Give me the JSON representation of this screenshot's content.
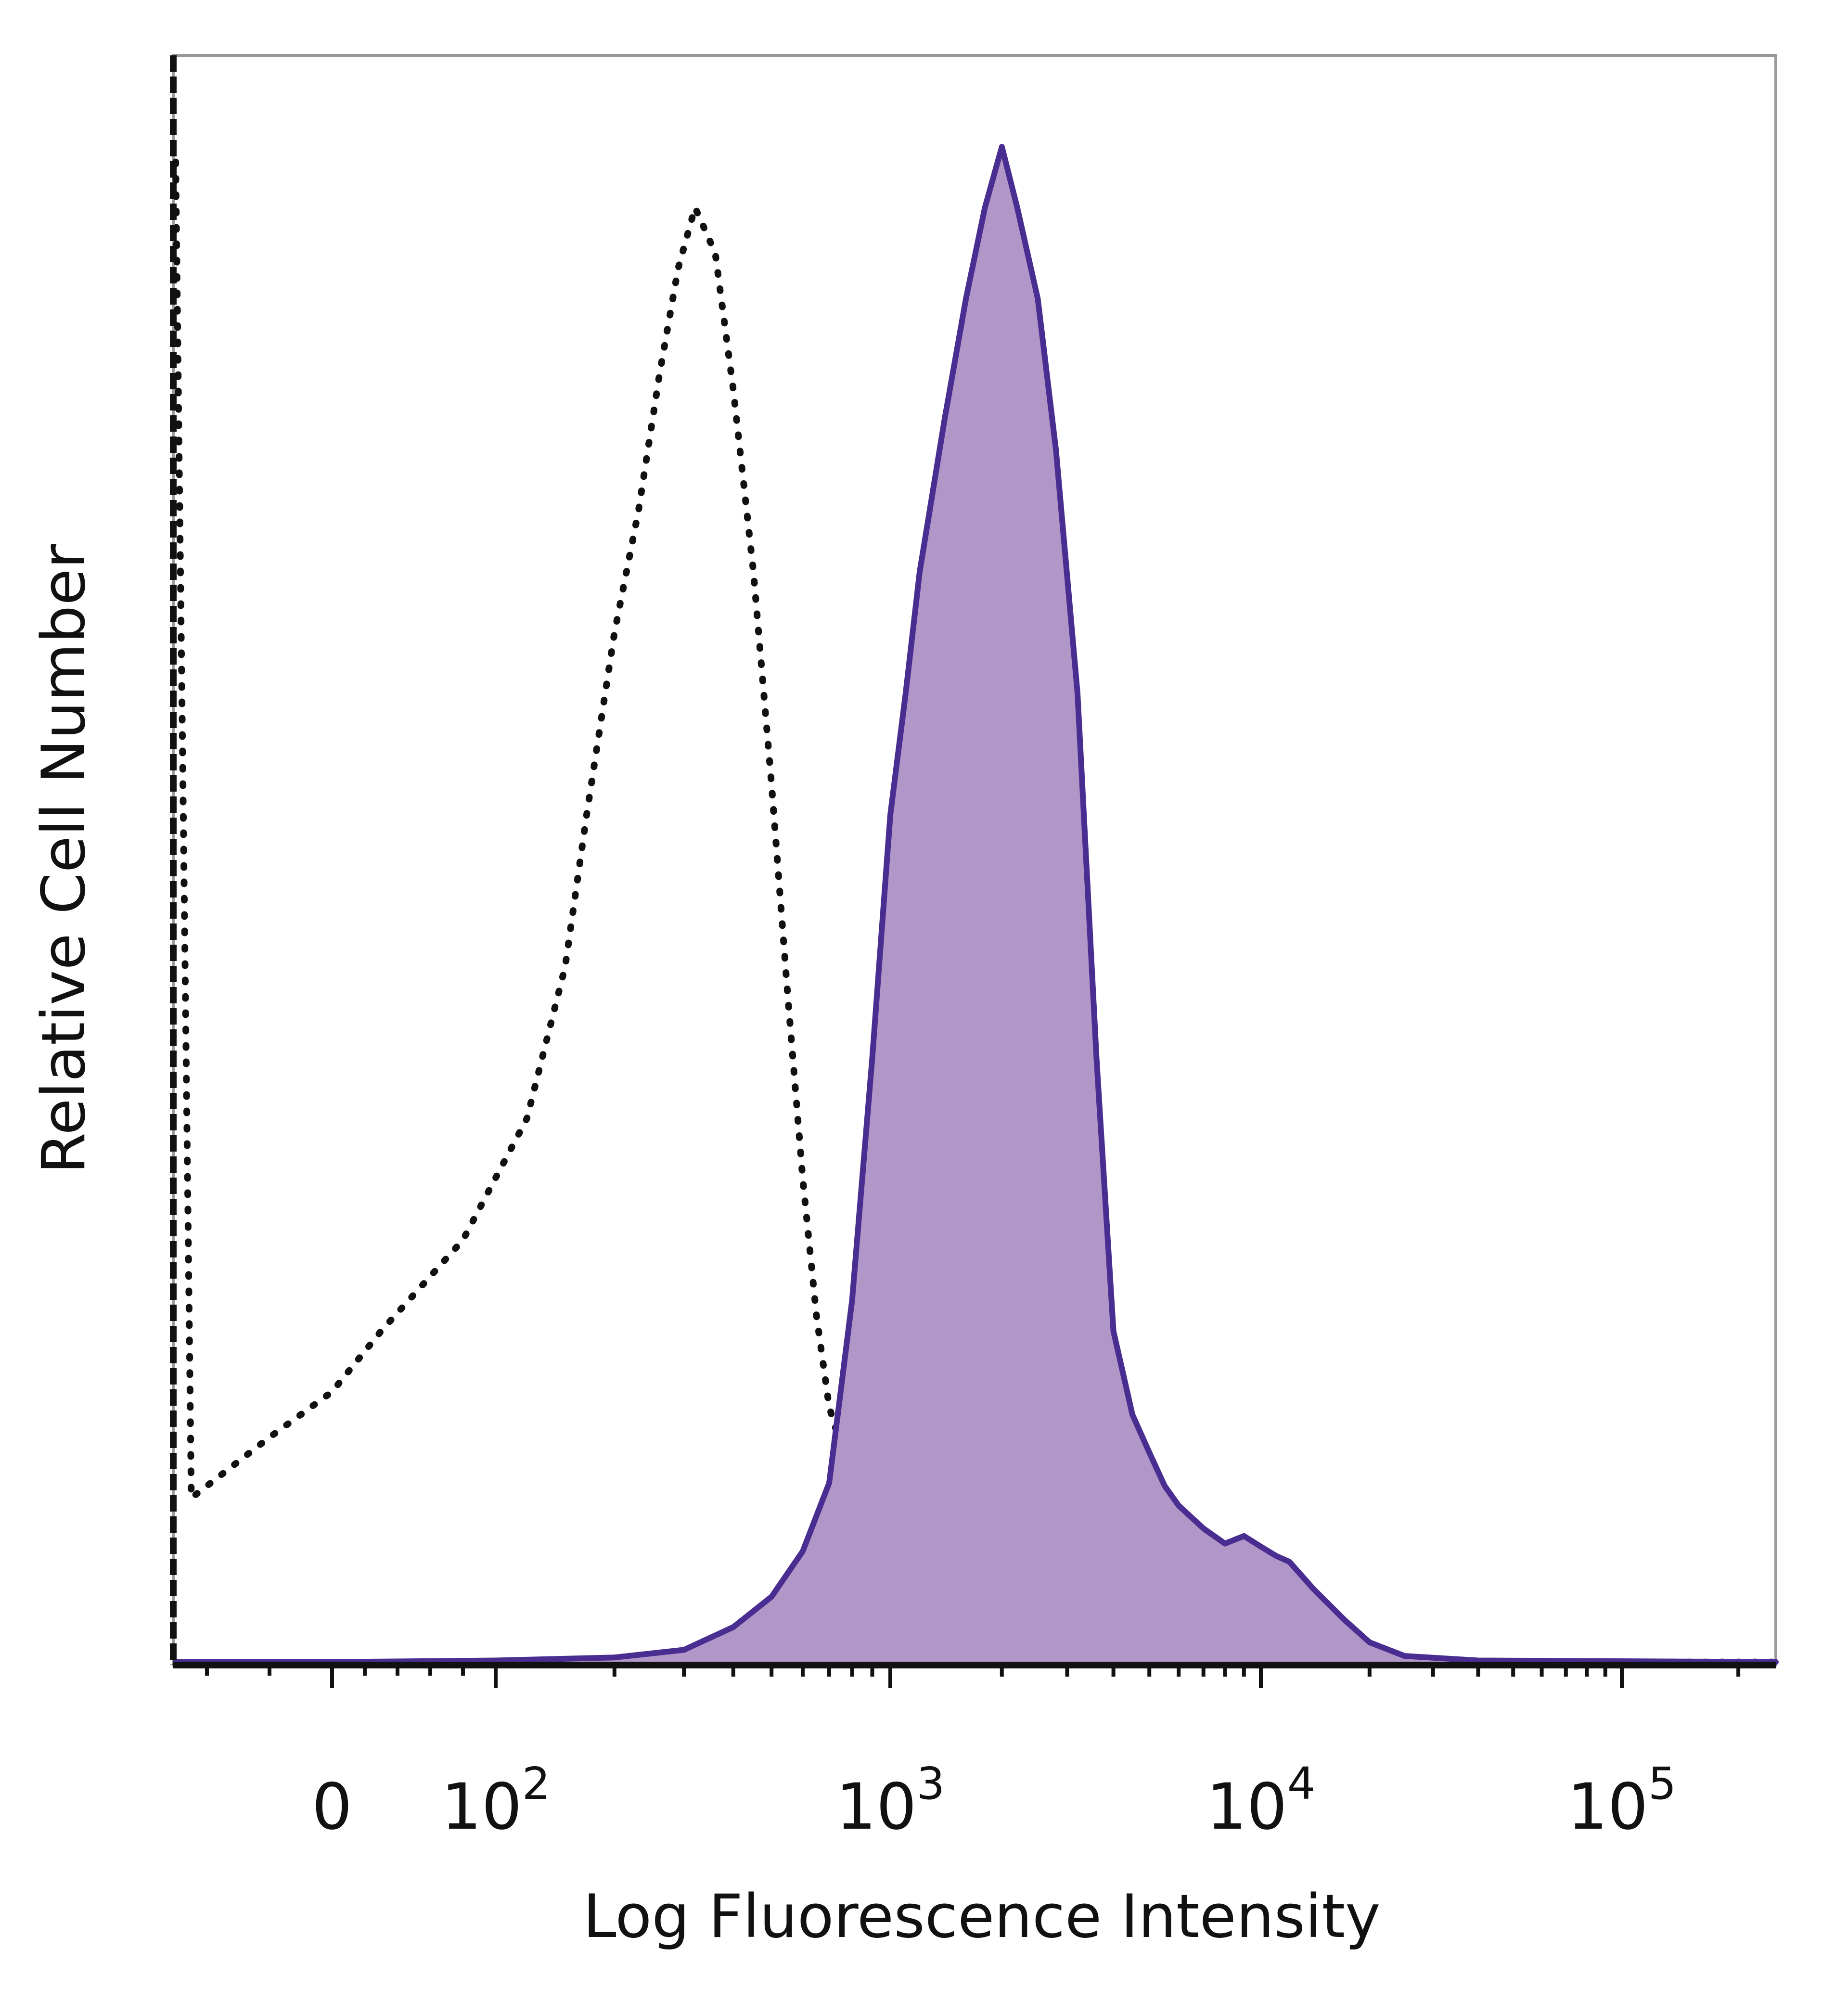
{
  "chart_data": {
    "type": "area",
    "xlabel": "Log Fluorescence Intensity",
    "ylabel": "Relative Cell Number",
    "x_scale": "biexponential",
    "xlim": [
      -50,
      250000
    ],
    "ylim": [
      0,
      1
    ],
    "grid": false,
    "legend": "none",
    "x_ticks": [
      {
        "value": 0,
        "base": "0",
        "exp": ""
      },
      {
        "value": 100,
        "base": "10",
        "exp": "2"
      },
      {
        "value": 1000,
        "base": "10",
        "exp": "3"
      },
      {
        "value": 10000,
        "base": "10",
        "exp": "4"
      },
      {
        "value": 100000,
        "base": "10",
        "exp": "5"
      }
    ],
    "series": [
      {
        "style": "dotted",
        "color": "#111111",
        "fill": "none",
        "x": [
          -50,
          -45,
          -20,
          0,
          30,
          80,
          120,
          150,
          170,
          200,
          230,
          260,
          290,
          320,
          360,
          400,
          450,
          500,
          550,
          600,
          650,
          700,
          800,
          900,
          1000,
          1200,
          1500,
          2000,
          3000,
          5000,
          8000,
          12000,
          30000,
          250000
        ],
        "y": [
          0.99,
          0.11,
          0.15,
          0.18,
          0.22,
          0.28,
          0.36,
          0.46,
          0.56,
          0.68,
          0.76,
          0.85,
          0.92,
          0.96,
          0.93,
          0.84,
          0.72,
          0.58,
          0.44,
          0.32,
          0.23,
          0.17,
          0.12,
          0.085,
          0.06,
          0.035,
          0.022,
          0.012,
          0.008,
          0.005,
          0.008,
          0.004,
          0.002,
          0.002
        ]
      },
      {
        "style": "solid",
        "color": "#4a2d91",
        "fill": "#b197c8",
        "x": [
          -50,
          0,
          100,
          200,
          300,
          400,
          500,
          600,
          700,
          800,
          900,
          1000,
          1100,
          1200,
          1400,
          1600,
          1800,
          2000,
          2200,
          2500,
          2800,
          3200,
          3600,
          4000,
          4500,
          5000,
          5500,
          6000,
          7000,
          8000,
          9000,
          10000,
          11000,
          12000,
          14000,
          17000,
          20000,
          25000,
          40000,
          250000
        ],
        "y": [
          0.002,
          0.002,
          0.003,
          0.005,
          0.01,
          0.025,
          0.045,
          0.075,
          0.12,
          0.24,
          0.4,
          0.56,
          0.64,
          0.72,
          0.82,
          0.9,
          0.96,
          1.0,
          0.96,
          0.9,
          0.8,
          0.64,
          0.4,
          0.22,
          0.165,
          0.14,
          0.118,
          0.105,
          0.09,
          0.08,
          0.085,
          0.078,
          0.072,
          0.068,
          0.05,
          0.03,
          0.015,
          0.006,
          0.003,
          0.002
        ]
      }
    ]
  }
}
